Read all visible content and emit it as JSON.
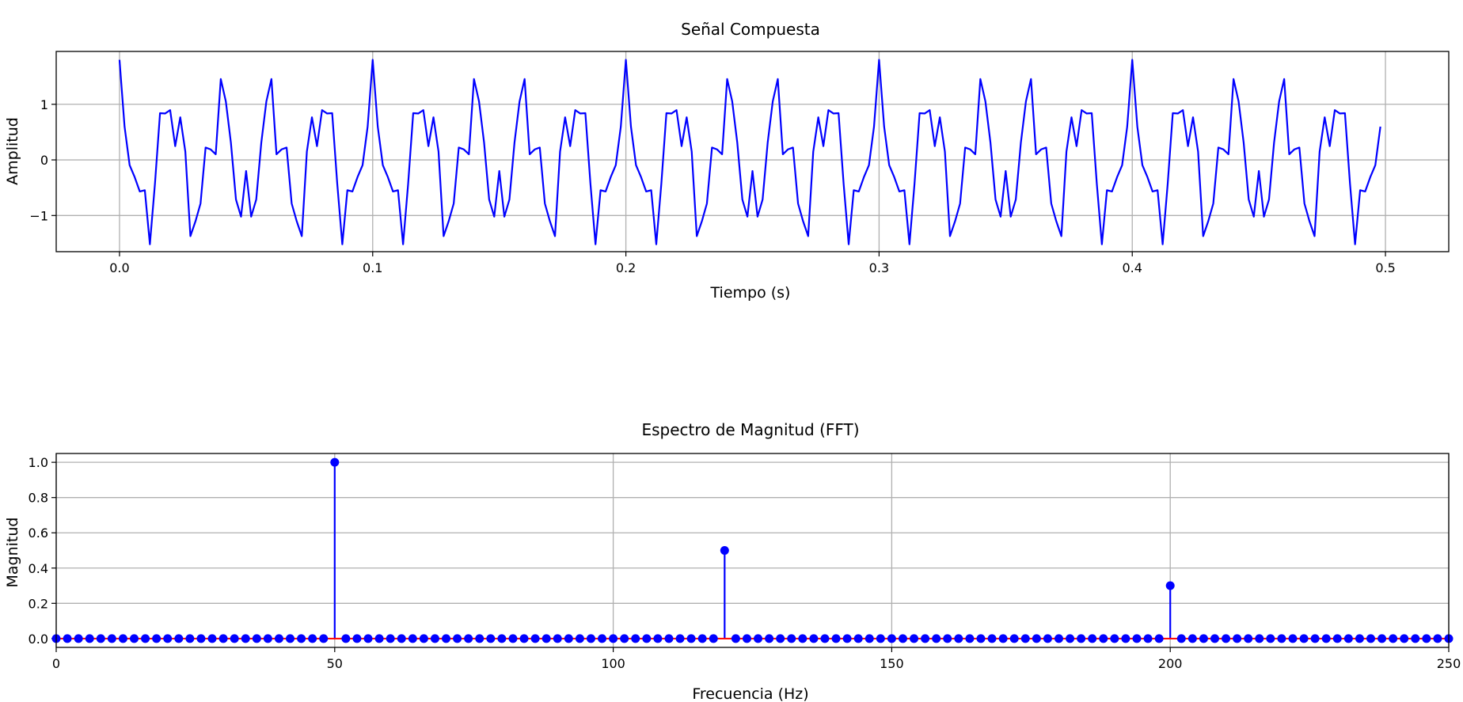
{
  "chart_data": [
    {
      "type": "line",
      "title": "Señal Compuesta",
      "xlabel": "Tiempo (s)",
      "ylabel": "Amplitud",
      "xlim": [
        -0.025,
        0.525
      ],
      "ylim": [
        -1.65,
        1.95
      ],
      "xticks": [
        0.0,
        0.1,
        0.2,
        0.3,
        0.4,
        0.5
      ],
      "xtick_labels": [
        "0.0",
        "0.1",
        "0.2",
        "0.3",
        "0.4",
        "0.5"
      ],
      "yticks": [
        -1,
        0,
        1
      ],
      "ytick_labels": [
        "−1",
        "0",
        "1"
      ],
      "grid": true,
      "series": [
        {
          "color": "#0000ff",
          "sample_rate_hz": 500,
          "t_start": 0.0,
          "t_end": 0.498,
          "components": [
            {
              "frequency_hz": 50,
              "amplitude": 1.0
            },
            {
              "frequency_hz": 120,
              "amplitude": 0.5
            },
            {
              "frequency_hz": 200,
              "amplitude": 0.3
            }
          ]
        }
      ]
    },
    {
      "type": "stem",
      "title": "Espectro de Magnitud (FFT)",
      "xlabel": "Frecuencia (Hz)",
      "ylabel": "Magnitud",
      "xlim": [
        0,
        250
      ],
      "ylim": [
        -0.05,
        1.05
      ],
      "xticks": [
        0,
        50,
        100,
        150,
        200,
        250
      ],
      "xtick_labels": [
        "0",
        "50",
        "100",
        "150",
        "200",
        "250"
      ],
      "yticks": [
        0.0,
        0.2,
        0.4,
        0.6,
        0.8,
        1.0
      ],
      "ytick_labels": [
        "0.0",
        "0.2",
        "0.4",
        "0.6",
        "0.8",
        "1.0"
      ],
      "grid": true,
      "marker_color": "#0000ff",
      "baseline_color": "#ff0000",
      "bin_spacing_hz": 2,
      "freq_start": 0,
      "freq_end": 250,
      "peaks": [
        {
          "frequency": 50,
          "magnitude": 1.0
        },
        {
          "frequency": 120,
          "magnitude": 0.5
        },
        {
          "frequency": 200,
          "magnitude": 0.3
        }
      ]
    }
  ]
}
